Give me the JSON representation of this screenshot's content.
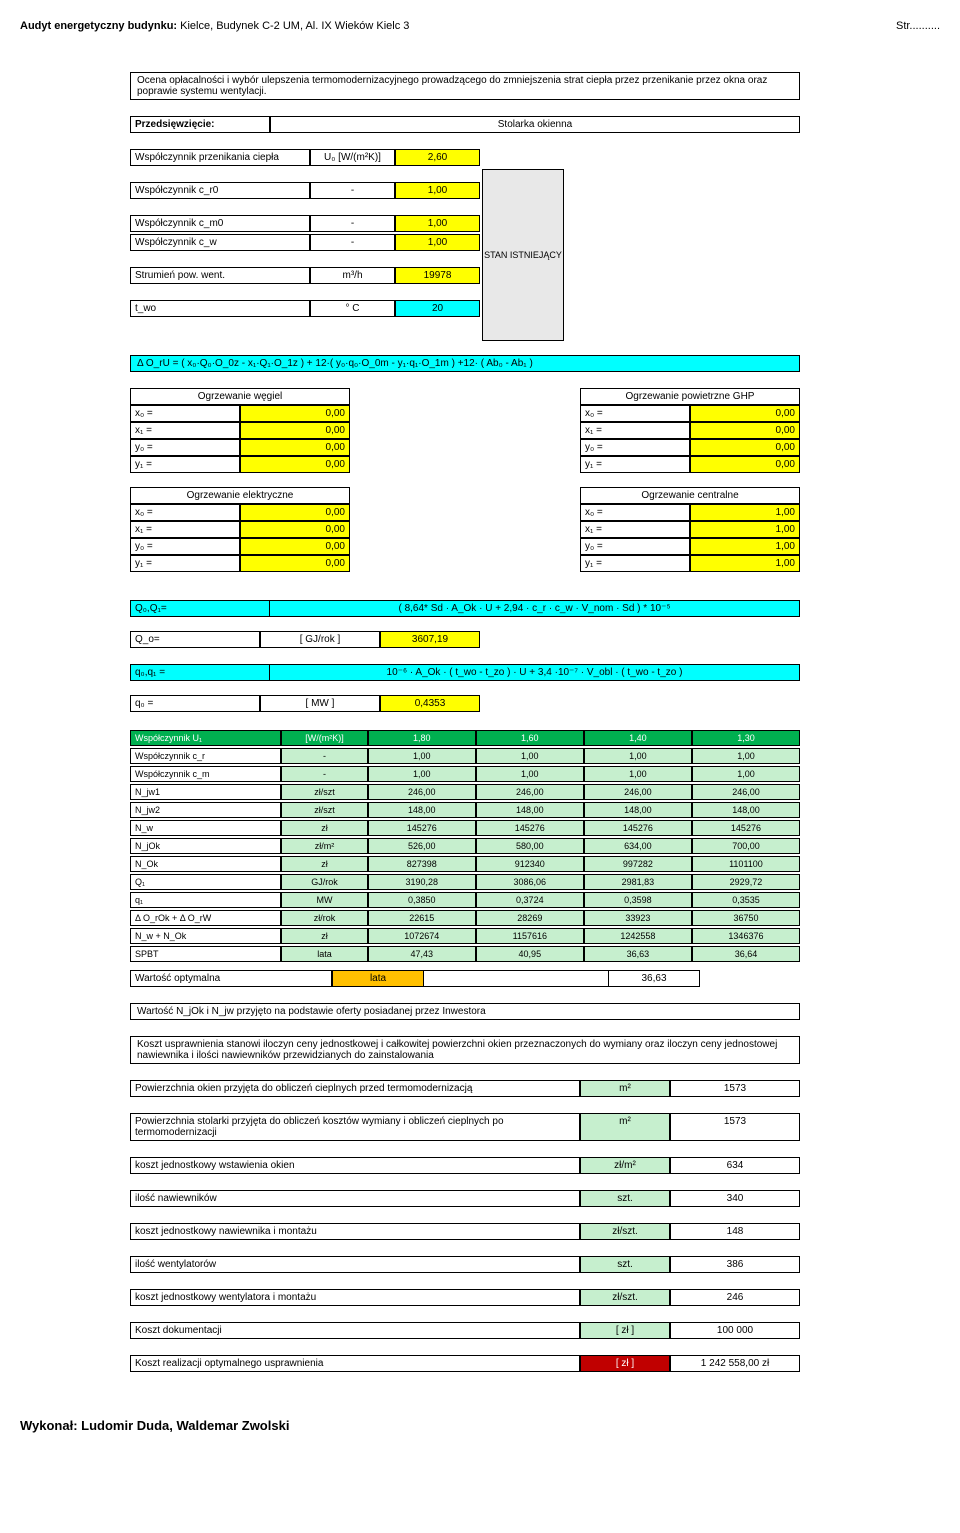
{
  "header": {
    "title_prefix": "Audyt energetyczny budynku: ",
    "title": "Kielce, Budynek C-2 UM, Al. IX Wieków Kielc 3",
    "page": "Str.........."
  },
  "ocena": {
    "text": "Ocena opłacalności i wybór ulepszenia termomodernizacyjnego prowadzącego do zmniejszenia strat ciepła przez przenikanie przez okna oraz poprawie systemu wentylacji."
  },
  "przed": {
    "label": "Przedsięwzięcie:",
    "value": "Stolarka okienna"
  },
  "params": {
    "u0_label": "Współczynnik przenikania ciepła",
    "u0_unit": "U₀ [W/(m²K)]",
    "u0_val": "2,60",
    "cr0_label": "Współczynnik c_r0",
    "cr0_unit": "-",
    "cr0_val": "1,00",
    "cm0_label": "Współczynnik c_m0",
    "cm0_unit": "-",
    "cm0_val": "1,00",
    "cw_label": "Współczynnik c_w",
    "cw_unit": "-",
    "cw_val": "1,00",
    "stan": "STAN ISTNIEJĄCY",
    "str_label": "Strumień pow. went.",
    "str_unit": "m³/h",
    "str_val": "19978",
    "two_label": "t_wo",
    "two_unit": "° C",
    "two_val": "20"
  },
  "delta": "Δ O_rU = ( x₀·Q₀·O_0z - x₁·Q₁·O_1z ) + 12·( y₀·q₀·O_0m - y₁·q₁·O_1m ) +12· ( Ab₀ - Ab₁ )",
  "heat_blocks": {
    "h1_title": "Ogrzewanie węgiel",
    "h2_title": "Ogrzewanie powietrzne GHP",
    "h3_title": "Ogrzewanie elektryczne",
    "h4_title": "Ogrzewanie centralne",
    "rows_labels": [
      "x₀ =",
      "x₁ =",
      "y₀ =",
      "y₁ ="
    ],
    "zeros": [
      "0,00",
      "0,00",
      "0,00",
      "0,00"
    ],
    "ones": [
      "1,00",
      "1,00",
      "1,00",
      "1,00"
    ]
  },
  "qo_formula_label": "Q₀,Q₁=",
  "qo_formula": "( 8,64* Sd · A_Ok · U + 2,94 · c_r · c_w · V_nom · Sd ) * 10⁻⁵",
  "qo_label": "Q_o=",
  "qo_unit": "[ GJ/rok ]",
  "qo_val": "3607,19",
  "q0q1_label": "q₀,q₁ =",
  "q0q1_formula": "10⁻⁶ · A_Ok · ( t_wo - t_zo ) · U + 3,4 ·10⁻⁷ · V_obl · ( t_wo - t_zo )",
  "q0_label": "q₀ =",
  "q0_unit": "[ MW ]",
  "q0_val": "0,4353",
  "main_table": {
    "labels": [
      "Współczynnik U₁",
      "Współczynnik c_r",
      "Współczynnik c_m",
      "N_jw1",
      "N_jw2",
      "N_w",
      "N_jOk",
      "N_Ok",
      "Q₁",
      "q₁",
      "Δ O_rOk + Δ O_rW",
      "N_w + N_Ok",
      "SPBT"
    ],
    "units": [
      "[W/(m²K)]",
      "-",
      "-",
      "zł/szt",
      "zł/szt",
      "zł",
      "zł/m²",
      "zł",
      "GJ/rok",
      "MW",
      "zł/rok",
      "zł",
      "lata"
    ],
    "cols": {
      "c1": [
        "1,80",
        "1,00",
        "1,00",
        "246,00",
        "148,00",
        "145276",
        "526,00",
        "827398",
        "3190,28",
        "0,3850",
        "22615",
        "1072674",
        "47,43"
      ],
      "c2": [
        "1,60",
        "1,00",
        "1,00",
        "246,00",
        "148,00",
        "145276",
        "580,00",
        "912340",
        "3086,06",
        "0,3724",
        "28269",
        "1157616",
        "40,95"
      ],
      "c3": [
        "1,40",
        "1,00",
        "1,00",
        "246,00",
        "148,00",
        "145276",
        "634,00",
        "997282",
        "2981,83",
        "0,3598",
        "33923",
        "1242558",
        "36,63"
      ],
      "c4": [
        "1,30",
        "1,00",
        "1,00",
        "246,00",
        "148,00",
        "145276",
        "700,00",
        "1101100",
        "2929,72",
        "0,3535",
        "36750",
        "1346376",
        "36,64"
      ]
    },
    "opt_label": "Wartość optymalna",
    "opt_unit": "lata",
    "opt_val": "36,63"
  },
  "note1": "Wartość N_jOk i N_jw przyjęto na podstawie oferty posiadanej przez Inwestora",
  "note2": "Koszt usprawnienia stanowi iloczyn ceny jednostkowej i całkowitej powierzchni okien przeznaczonych do wymiany oraz iloczyn ceny jednostowej nawiewnika i ilości nawiewników przewidzianych do zainstalowania",
  "footer_rows": [
    {
      "label": "Powierzchnia okien przyjęta do obliczeń cieplnych przed termomodernizacją",
      "unit": "m²",
      "val": "1573",
      "uc": "green-lt"
    },
    {
      "label": "Powierzchnia stolarki przyjęta do obliczeń kosztów wymiany i obliczeń cieplnych po termomodernizacji",
      "unit": "m²",
      "val": "1573",
      "uc": "green-lt"
    },
    {
      "label": "koszt jednostkowy wstawienia okien",
      "unit": "zł/m²",
      "val": "634",
      "uc": "green-lt"
    },
    {
      "label": "ilość nawiewników",
      "unit": "szt.",
      "val": "340",
      "uc": "green-lt"
    },
    {
      "label": "koszt jednostkowy nawiewnika i montażu",
      "unit": "zł/szt.",
      "val": "148",
      "uc": "green-lt"
    },
    {
      "label": "ilość wentylatorów",
      "unit": "szt.",
      "val": "386",
      "uc": "green-lt"
    },
    {
      "label": "koszt jednostkowy wentylatora i montażu",
      "unit": "zł/szt.",
      "val": "246",
      "uc": "green-lt"
    },
    {
      "label": "Koszt dokumentacji",
      "unit": "[ zł ]",
      "val": "100 000",
      "uc": "green-lt"
    },
    {
      "label": "Koszt realizacji optymalnego usprawnienia",
      "unit": "[ zł ]",
      "val": "1 242 558,00 zł",
      "uc": "red-dk"
    }
  ],
  "footer_print": "Wykonał: Ludomir Duda, Waldemar Zwolski"
}
